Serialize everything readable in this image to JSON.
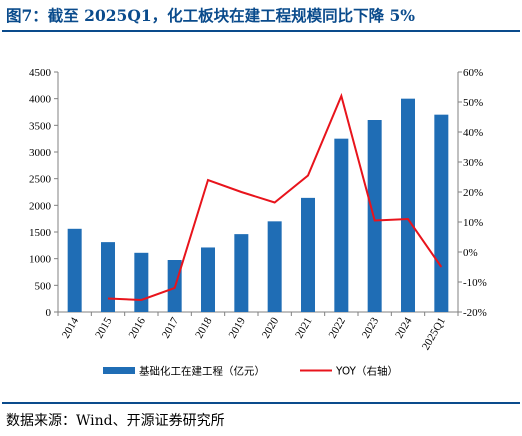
{
  "header": {
    "title": "图7：截至 2025Q1，化工板块在建工程规模同比下降 5%"
  },
  "footer": {
    "source": "数据来源：Wind、开源证券研究所"
  },
  "colors": {
    "bar": "#1f6db5",
    "line": "#e8141c",
    "title": "#0a4b8c"
  },
  "chart_data": {
    "type": "bar",
    "title": "",
    "categories": [
      "2014",
      "2015",
      "2016",
      "2017",
      "2018",
      "2019",
      "2020",
      "2021",
      "2022",
      "2023",
      "2024",
      "2025Q1"
    ],
    "series": [
      {
        "name": "基础化工在建工程（亿元）",
        "type": "bar",
        "axis": "left",
        "values": [
          1560,
          1310,
          1110,
          975,
          1210,
          1460,
          1700,
          2140,
          3250,
          3600,
          4000,
          3700
        ]
      },
      {
        "name": "YOY（右轴）",
        "type": "line",
        "axis": "right",
        "values": [
          null,
          -15.5,
          -16.0,
          -12.0,
          24.0,
          20.0,
          16.5,
          25.5,
          52.0,
          10.5,
          11.0,
          -5.0
        ]
      }
    ],
    "ylim_left": [
      0,
      4500
    ],
    "yticks_left": [
      "0",
      "500",
      "1000",
      "1500",
      "2000",
      "2500",
      "3000",
      "3500",
      "4000",
      "4500"
    ],
    "ylim_right": [
      -20,
      60
    ],
    "yticks_right": [
      "-20%",
      "-10%",
      "0%",
      "10%",
      "20%",
      "30%",
      "40%",
      "50%",
      "60%"
    ],
    "legend_position": "bottom",
    "grid": false
  }
}
